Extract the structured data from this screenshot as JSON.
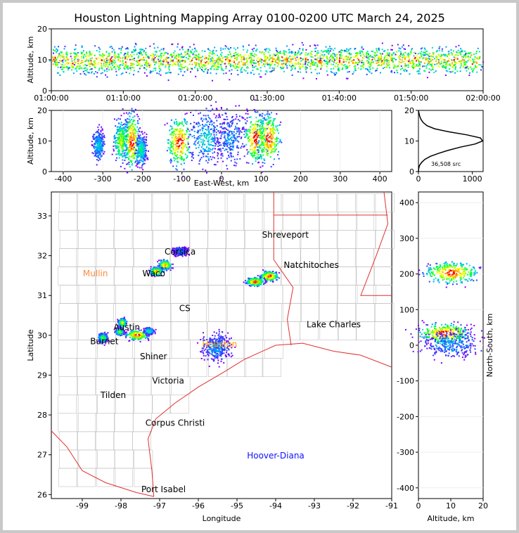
{
  "title": "Houston Lightning Mapping Array 0100-0200 UTC March 24, 2025",
  "colors": {
    "palette": [
      "#8000ff",
      "#3040ff",
      "#00a0ff",
      "#00e0c0",
      "#00ff40",
      "#80ff00",
      "#ffff00",
      "#ffa000",
      "#ff0000",
      "#ffffff"
    ],
    "state_border": "#e03030",
    "county_line": "#c0c0c0",
    "city_label": "#000000",
    "site_orange": "#ff8c3c",
    "site_blue": "#1010ff"
  },
  "chart_data": [
    {
      "type": "heatmap",
      "name": "altitude-time",
      "title": "",
      "xlabel": "",
      "ylabel": "Altitude, km",
      "xlim": [
        "01:00:00",
        "02:00:00"
      ],
      "ylim": [
        0,
        20
      ],
      "xticks": [
        "01:00:00",
        "01:10:00",
        "01:20:00",
        "01:30:00",
        "01:40:00",
        "01:50:00",
        "02:00:00"
      ],
      "yticks": [
        "0",
        "10",
        "20"
      ],
      "band": {
        "center_km": 10,
        "half_width_km": 3.5
      }
    },
    {
      "type": "heatmap",
      "name": "east-west-altitude",
      "xlabel": "East-West, km",
      "ylabel": "Altitude, km",
      "xlim": [
        -430,
        430
      ],
      "ylim": [
        0,
        20
      ],
      "xticks": [
        "-400",
        "-300",
        "-200",
        "-100",
        "0",
        "100",
        "200",
        "300",
        "400"
      ],
      "yticks": [
        "0",
        "10",
        "20"
      ],
      "cells": [
        {
          "x": -312,
          "z": 9,
          "wx": 14,
          "wz": 5,
          "level": 3
        },
        {
          "x": -255,
          "z": 10,
          "wx": 18,
          "wz": 7,
          "level": 6
        },
        {
          "x": -228,
          "z": 10,
          "wx": 18,
          "wz": 9,
          "level": 9
        },
        {
          "x": -205,
          "z": 7,
          "wx": 14,
          "wz": 5,
          "level": 4
        },
        {
          "x": -108,
          "z": 10,
          "wx": 30,
          "wz": 8,
          "level": 9
        },
        {
          "x": -40,
          "z": 11,
          "wx": 40,
          "wz": 9,
          "level": 3
        },
        {
          "x": 20,
          "z": 11,
          "wx": 40,
          "wz": 9,
          "level": 2
        },
        {
          "x": 85,
          "z": 11,
          "wx": 28,
          "wz": 8,
          "level": 9
        },
        {
          "x": 118,
          "z": 11,
          "wx": 28,
          "wz": 8,
          "level": 9
        }
      ]
    },
    {
      "type": "line",
      "name": "altitude-histogram",
      "xlim": [
        0,
        1200
      ],
      "ylim": [
        0,
        20
      ],
      "xticks": [
        "0",
        "1000"
      ],
      "yticks": [
        "0",
        "10",
        "20"
      ],
      "annotation": "36,508 src",
      "points": [
        [
          0,
          0
        ],
        [
          5,
          1
        ],
        [
          20,
          2
        ],
        [
          60,
          3
        ],
        [
          120,
          4
        ],
        [
          220,
          5
        ],
        [
          380,
          6
        ],
        [
          560,
          7
        ],
        [
          780,
          8
        ],
        [
          1050,
          9
        ],
        [
          1190,
          10
        ],
        [
          1150,
          11
        ],
        [
          900,
          12
        ],
        [
          560,
          13
        ],
        [
          300,
          14
        ],
        [
          160,
          15
        ],
        [
          90,
          16
        ],
        [
          50,
          17
        ],
        [
          25,
          18
        ],
        [
          12,
          19
        ],
        [
          0,
          20
        ]
      ]
    },
    {
      "type": "scatter",
      "name": "plan-view-map",
      "xlabel": "Longitude",
      "ylabel": "Latitude",
      "xlim": [
        -99.8,
        -91
      ],
      "ylim": [
        25.9,
        33.6
      ],
      "xticks": [
        "-99",
        "-98",
        "-97",
        "-96",
        "-95",
        "-94",
        "-93",
        "-92",
        "-91"
      ],
      "yticks": [
        "26",
        "27",
        "28",
        "29",
        "30",
        "31",
        "32",
        "33"
      ],
      "cities": [
        {
          "name": "Shreveport",
          "lon": -93.75,
          "lat": 32.52,
          "color": "#000000"
        },
        {
          "name": "Corsica",
          "lon": -96.47,
          "lat": 32.1,
          "color": "#000000"
        },
        {
          "name": "Mullin",
          "lon": -98.66,
          "lat": 31.55,
          "color": "#ff8c3c"
        },
        {
          "name": "Waco",
          "lon": -97.15,
          "lat": 31.55,
          "color": "#000000"
        },
        {
          "name": "Natchitoches",
          "lon": -93.08,
          "lat": 31.76,
          "color": "#000000"
        },
        {
          "name": "CS",
          "lon": -96.35,
          "lat": 30.68,
          "color": "#000000"
        },
        {
          "name": "Austin",
          "lon": -97.85,
          "lat": 30.2,
          "color": "#000000"
        },
        {
          "name": "Burnet",
          "lon": -98.43,
          "lat": 29.85,
          "color": "#000000"
        },
        {
          "name": "Houston",
          "lon": -95.45,
          "lat": 29.78,
          "color": "#ffa000"
        },
        {
          "name": "Lake Charles",
          "lon": -92.5,
          "lat": 30.27,
          "color": "#000000"
        },
        {
          "name": "Shiner",
          "lon": -97.16,
          "lat": 29.47,
          "color": "#000000"
        },
        {
          "name": "Victoria",
          "lon": -96.78,
          "lat": 28.86,
          "color": "#000000"
        },
        {
          "name": "Tilden",
          "lon": -98.2,
          "lat": 28.5,
          "color": "#000000"
        },
        {
          "name": "Corpus Christi",
          "lon": -96.6,
          "lat": 27.8,
          "color": "#000000"
        },
        {
          "name": "Hoover-Diana",
          "lon": -94.0,
          "lat": 26.98,
          "color": "#1010ff"
        },
        {
          "name": "Port Isabel",
          "lon": -96.9,
          "lat": 26.13,
          "color": "#000000"
        }
      ],
      "cells": [
        {
          "lon": -96.48,
          "lat": 32.12,
          "wx": 0.18,
          "wy": 0.1,
          "level": 2
        },
        {
          "lon": -96.88,
          "lat": 31.78,
          "wx": 0.16,
          "wy": 0.12,
          "level": 8
        },
        {
          "lon": -97.1,
          "lat": 31.62,
          "wx": 0.16,
          "wy": 0.1,
          "level": 8
        },
        {
          "lon": -94.18,
          "lat": 31.5,
          "wx": 0.22,
          "wy": 0.12,
          "level": 9
        },
        {
          "lon": -94.55,
          "lat": 31.36,
          "wx": 0.22,
          "wy": 0.1,
          "level": 9
        },
        {
          "lon": -97.6,
          "lat": 30.02,
          "wx": 0.28,
          "wy": 0.12,
          "level": 9
        },
        {
          "lon": -97.98,
          "lat": 30.33,
          "wx": 0.1,
          "wy": 0.1,
          "level": 7
        },
        {
          "lon": -98.05,
          "lat": 30.1,
          "wx": 0.1,
          "wy": 0.08,
          "level": 6
        },
        {
          "lon": -98.48,
          "lat": 29.95,
          "wx": 0.12,
          "wy": 0.12,
          "level": 5
        },
        {
          "lon": -97.28,
          "lat": 30.12,
          "wx": 0.12,
          "wy": 0.08,
          "level": 4
        },
        {
          "lon": -95.55,
          "lat": 29.7,
          "wx": 0.35,
          "wy": 0.35,
          "level": 2
        }
      ]
    },
    {
      "type": "heatmap",
      "name": "north-south-altitude",
      "xlabel": "Altitude, km",
      "ylabel": "North-South, km",
      "xlim": [
        0,
        20
      ],
      "ylim": [
        -430,
        430
      ],
      "xticks": [
        "0",
        "10",
        "20"
      ],
      "yticks": [
        "-400",
        "-300",
        "-200",
        "-100",
        "0",
        "100",
        "200",
        "300",
        "400"
      ],
      "cells": [
        {
          "z": 10,
          "y": 205,
          "wz": 8,
          "wy": 30,
          "level": 9
        },
        {
          "z": 8,
          "y": 35,
          "wz": 8,
          "wy": 28,
          "level": 9
        },
        {
          "z": 10,
          "y": 5,
          "wz": 9,
          "wy": 40,
          "level": 2
        }
      ]
    }
  ]
}
